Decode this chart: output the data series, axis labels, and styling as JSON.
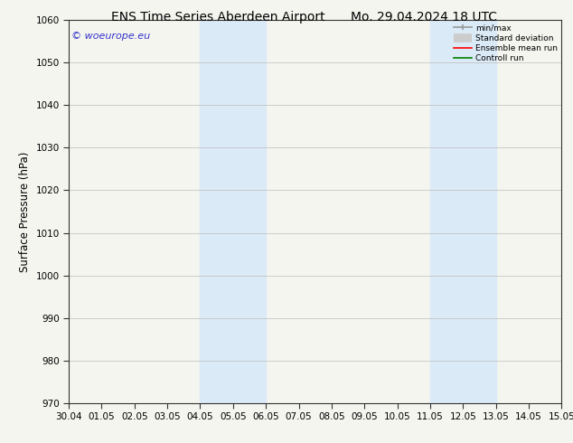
{
  "title_left": "ENS Time Series Aberdeen Airport",
  "title_right": "Mo. 29.04.2024 18 UTC",
  "ylabel": "Surface Pressure (hPa)",
  "xlim": [
    0,
    15
  ],
  "ylim": [
    970,
    1060
  ],
  "yticks": [
    970,
    980,
    990,
    1000,
    1010,
    1020,
    1030,
    1040,
    1050,
    1060
  ],
  "xtick_labels": [
    "30.04",
    "01.05",
    "02.05",
    "03.05",
    "04.05",
    "05.05",
    "06.05",
    "07.05",
    "08.05",
    "09.05",
    "10.05",
    "11.05",
    "12.05",
    "13.05",
    "14.05",
    "15.05"
  ],
  "xtick_positions": [
    0,
    1,
    2,
    3,
    4,
    5,
    6,
    7,
    8,
    9,
    10,
    11,
    12,
    13,
    14,
    15
  ],
  "shaded_bands": [
    {
      "x_start": 4.0,
      "x_end": 6.0
    },
    {
      "x_start": 11.0,
      "x_end": 13.0
    }
  ],
  "shade_color": "#daeaf7",
  "watermark_text": "© woeurope.eu",
  "watermark_color": "#3333cc",
  "bg_color": "#f5f5f0",
  "plot_bg_color": "#f5f5f0",
  "grid_color": "#bbbbbb",
  "spine_color": "#333333",
  "title_fontsize": 10,
  "tick_fontsize": 7.5,
  "ylabel_fontsize": 8.5,
  "watermark_fontsize": 8
}
